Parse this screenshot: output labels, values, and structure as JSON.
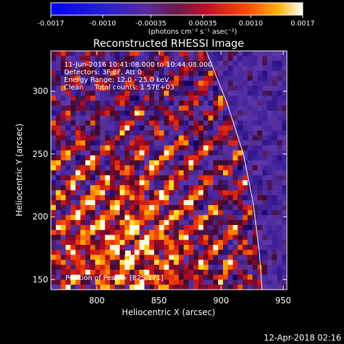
{
  "chart_data": {
    "type": "heatmap",
    "title": "Reconstructed RHESSI Image",
    "xlabel": "Heliocentric X (arcsec)",
    "ylabel": "Heliocentric Y (arcsec)",
    "xlim": [
      763,
      953
    ],
    "ylim": [
      142,
      332
    ],
    "x_ticks": [
      800,
      850,
      900,
      950
    ],
    "y_ticks": [
      150,
      200,
      250,
      300
    ],
    "x_tick_labels": [
      "800",
      "850",
      "900",
      "950"
    ],
    "y_tick_labels": [
      "150",
      "200",
      "250",
      "300"
    ],
    "colorbar": {
      "range": [
        -0.0017,
        0.0017
      ],
      "ticks": [
        -0.0017,
        -0.001,
        -0.00035,
        0.00035,
        0.001,
        0.0017
      ],
      "tick_labels": [
        "-0.0017",
        "-0.0010",
        "-0.00035",
        "0.00035",
        "0.0010",
        "0.0017"
      ],
      "unit_label": "(photons cm⁻² s⁻¹ asec⁻²)"
    },
    "info": {
      "line1": "11-Jun-2016 10:41:08.000 to 10:44:08.000",
      "line2": "Detectors: 3F 8F, Att 0",
      "line3": "Energy Range: 12.0 - 25.0 keV",
      "line4": "Clean     Total counts: 1.57E+03"
    },
    "peak": {
      "label": "Position of Peak = [825,171]",
      "x": 825,
      "y": 171
    },
    "limb_curve": [
      [
        888,
        332
      ],
      [
        905,
        290
      ],
      [
        918,
        250
      ],
      [
        926,
        210
      ],
      [
        931,
        170
      ],
      [
        933,
        142
      ]
    ],
    "grid_cells": {
      "nx": 48,
      "ny": 48
    },
    "footer": "12-Apr-2018 02:16"
  }
}
